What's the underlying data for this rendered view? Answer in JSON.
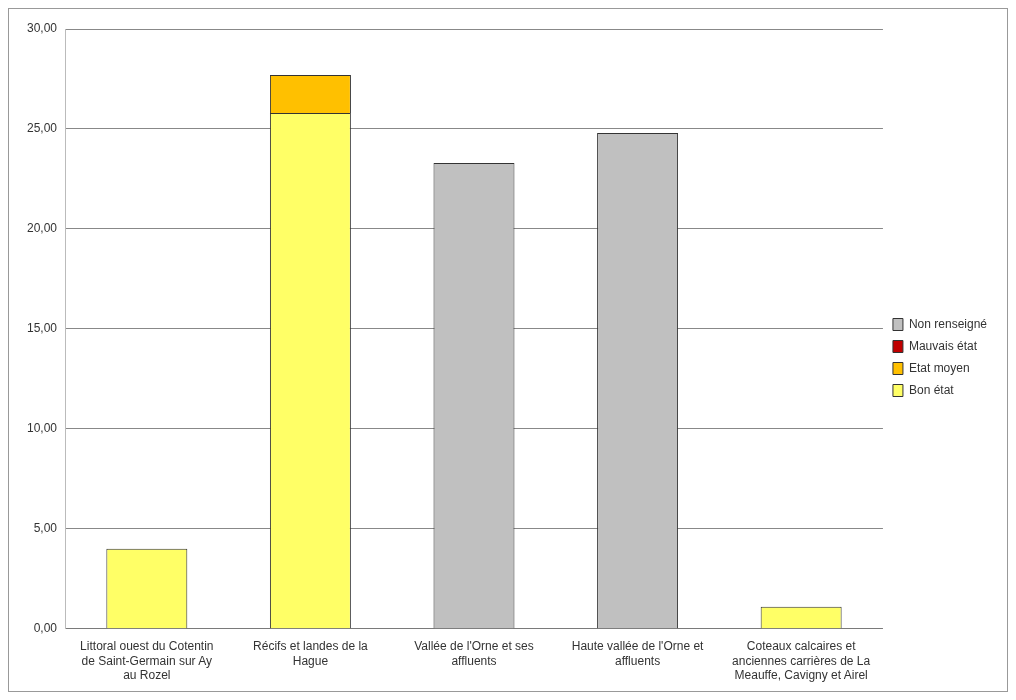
{
  "chart_data": {
    "type": "bar",
    "stacked": true,
    "categories": [
      "Littoral ouest du Cotentin de Saint-Germain sur Ay au Rozel",
      "Récifs et landes de la Hague",
      "Vallée de l'Orne et ses affluents",
      "Haute vallée de l'Orne et affluents",
      "Coteaux calcaires et anciennes carrières de La Meauffe, Cavigny et Airel"
    ],
    "series": [
      {
        "name": "Bon état",
        "color": "#ffff66",
        "values": [
          4.0,
          25.8,
          0,
          0,
          1.1
        ]
      },
      {
        "name": "Etat moyen",
        "color": "#ffc000",
        "values": [
          0,
          1.9,
          0,
          0,
          0
        ]
      },
      {
        "name": "Mauvais état",
        "color": "#c00000",
        "values": [
          0,
          0,
          0,
          0,
          0
        ]
      },
      {
        "name": "Non renseigné",
        "color": "#c0c0c0",
        "values": [
          0,
          0,
          23.3,
          24.8,
          0
        ]
      }
    ],
    "ylim": [
      0,
      30
    ],
    "yticks": [
      {
        "value": 0,
        "label": "0,00"
      },
      {
        "value": 5,
        "label": "5,00"
      },
      {
        "value": 10,
        "label": "10,00"
      },
      {
        "value": 15,
        "label": "15,00"
      },
      {
        "value": 20,
        "label": "20,00"
      },
      {
        "value": 25,
        "label": "25,00"
      },
      {
        "value": 30,
        "label": "30,00"
      }
    ],
    "grid": "y",
    "legend": "right"
  }
}
